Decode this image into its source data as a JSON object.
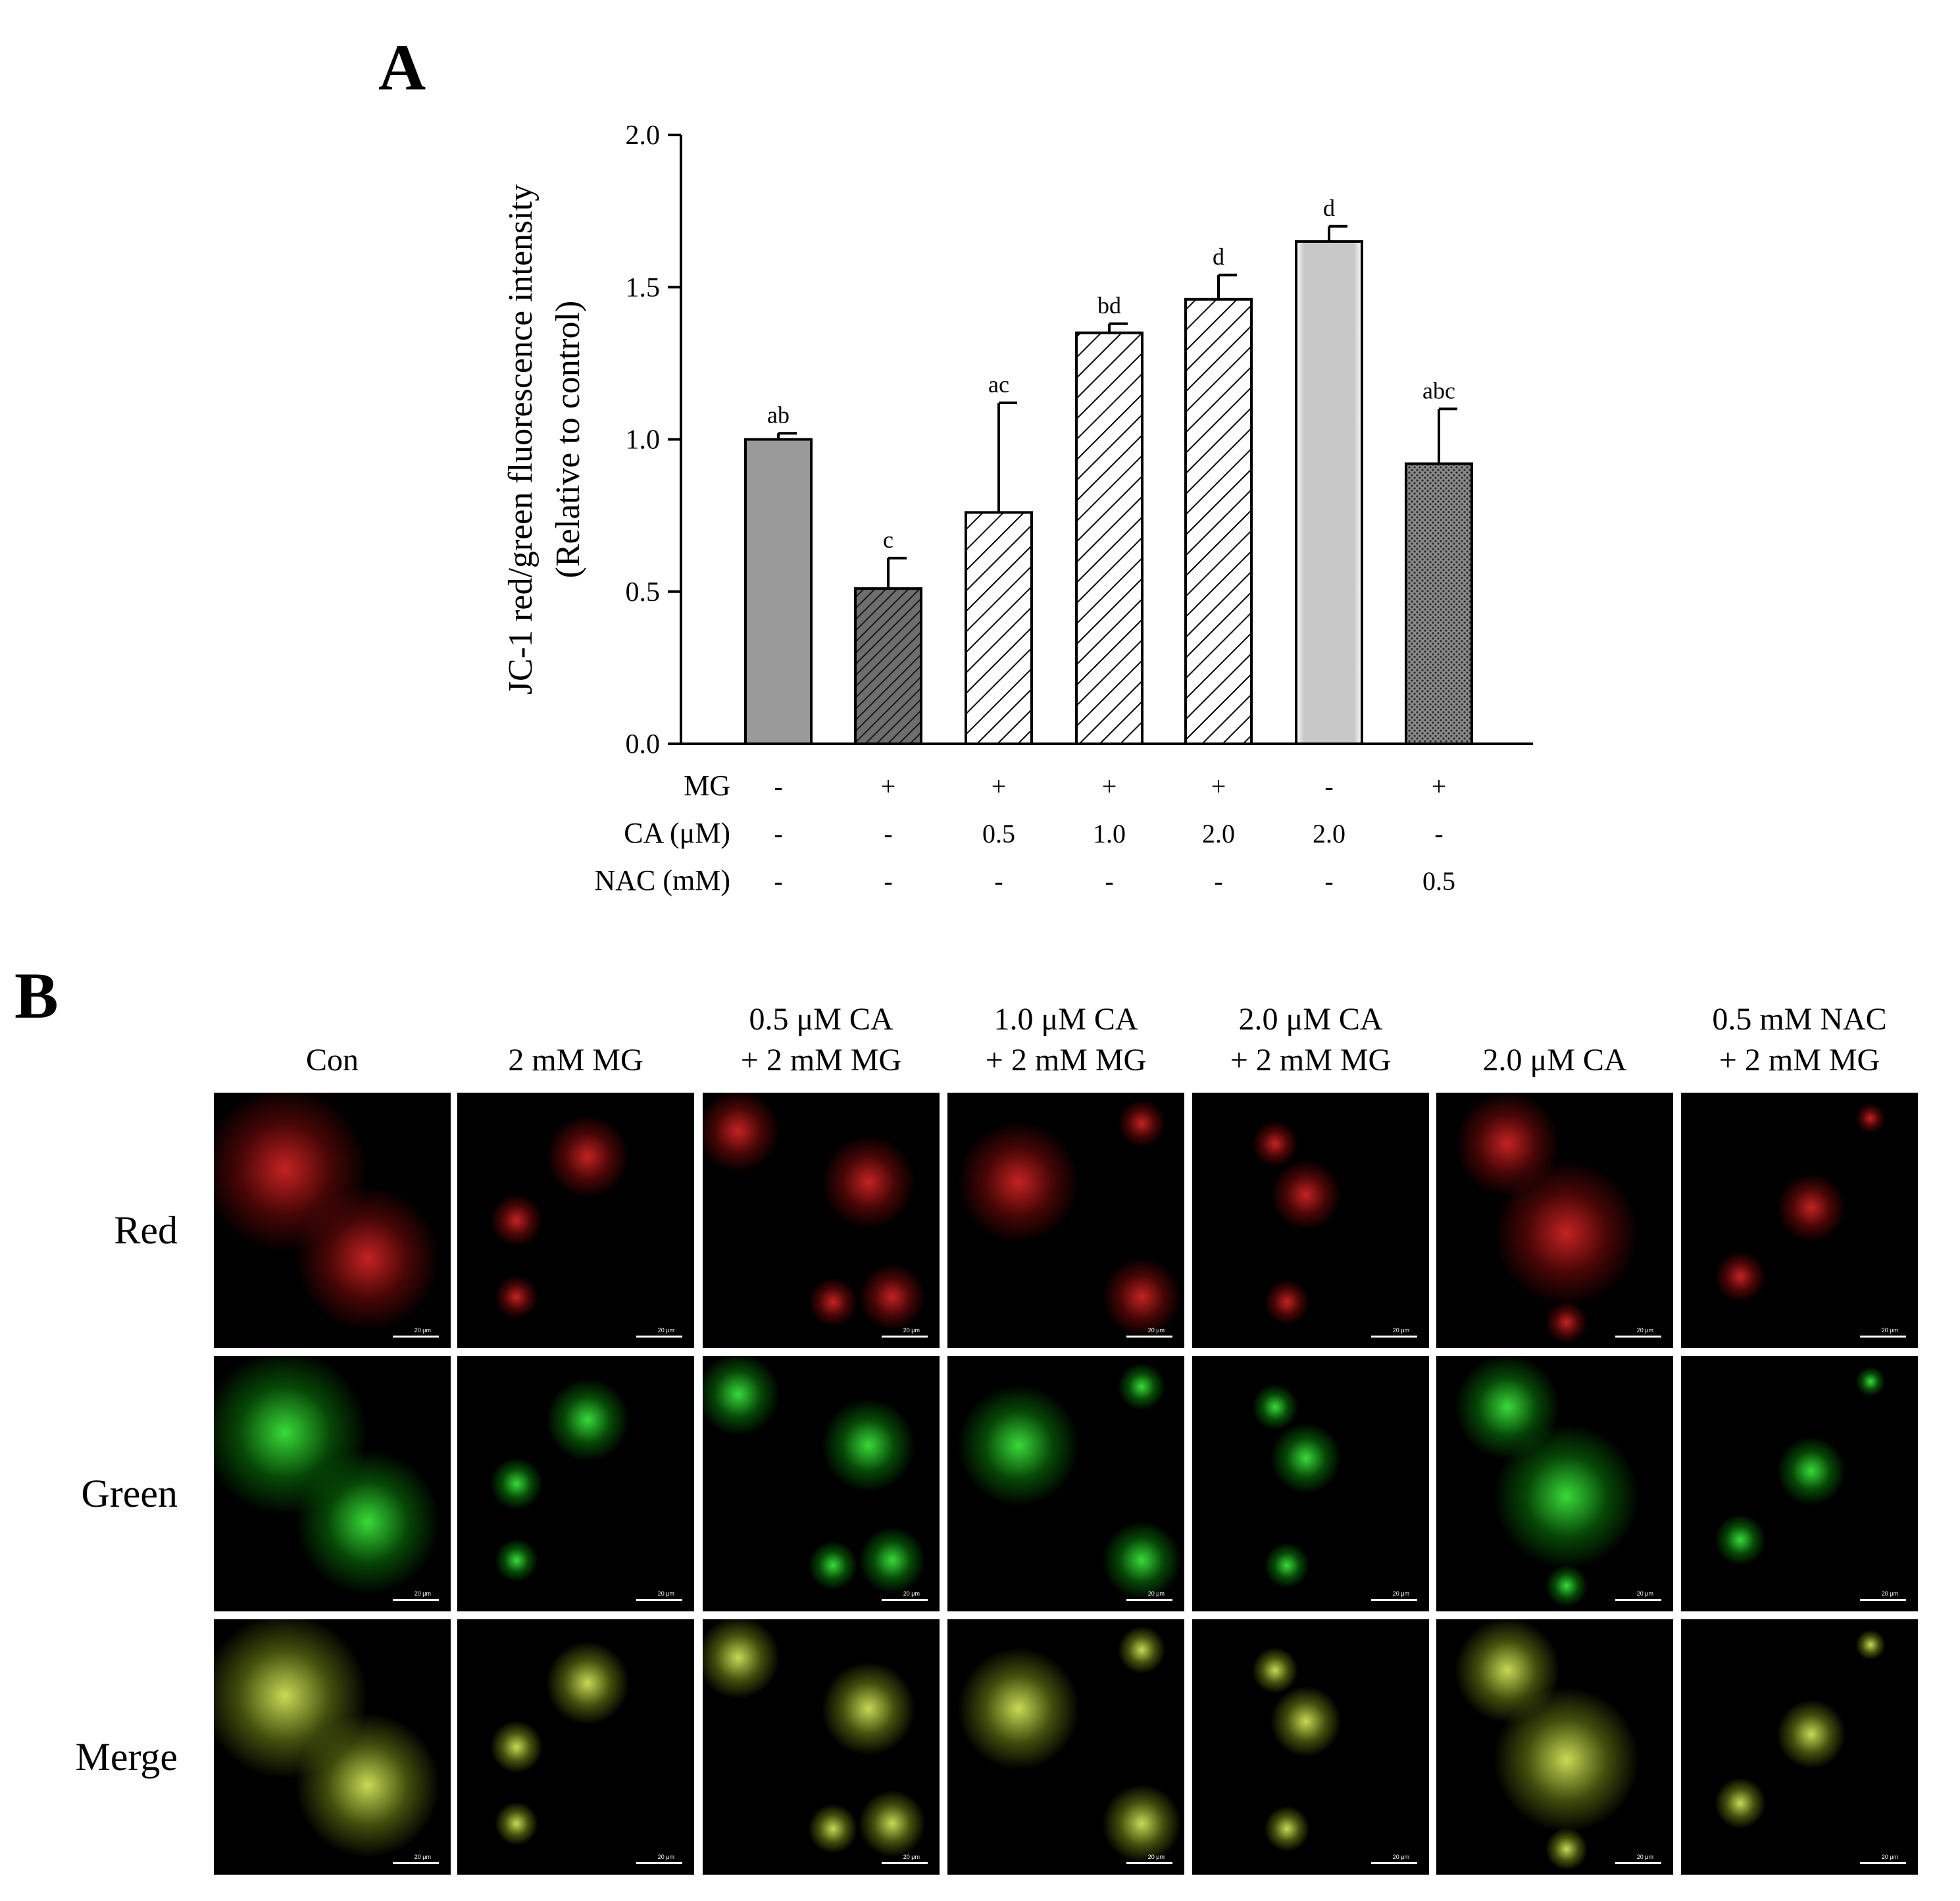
{
  "panel_a": {
    "letter": "A"
  },
  "panel_b": {
    "letter": "B"
  },
  "chart_data": {
    "type": "bar",
    "ylabel_line1": "JC-1 red/green fluorescence intensity",
    "ylabel_line2": "(Relative to control)",
    "ylim": [
      0,
      2.0
    ],
    "yticks": [
      "0.0",
      "0.5",
      "1.0",
      "1.5",
      "2.0"
    ],
    "values": [
      1.0,
      0.51,
      0.76,
      1.35,
      1.46,
      1.65,
      0.92
    ],
    "errors": [
      0.02,
      0.1,
      0.36,
      0.03,
      0.08,
      0.05,
      0.18
    ],
    "significance": [
      "ab",
      "c",
      "ac",
      "bd",
      "d",
      "d",
      "abc"
    ],
    "fills": [
      "solid-gray",
      "dense-hatch",
      "hatch",
      "hatch",
      "hatch",
      "light-gray",
      "crosshatch"
    ],
    "conditions": [
      {
        "label": "MG",
        "values": [
          "-",
          "+",
          "+",
          "+",
          "+",
          "-",
          "+"
        ]
      },
      {
        "label": "CA (μM)",
        "values": [
          "-",
          "-",
          "0.5",
          "1.0",
          "2.0",
          "2.0",
          "-"
        ]
      },
      {
        "label": "NAC (mM)",
        "values": [
          "-",
          "-",
          "-",
          "-",
          "-",
          "-",
          "0.5"
        ]
      }
    ]
  },
  "micrographs": {
    "columns": [
      {
        "line1": "",
        "line2": "Con"
      },
      {
        "line1": "",
        "line2": "2 mM MG"
      },
      {
        "line1": "0.5 μM CA",
        "line2": "+ 2 mM MG"
      },
      {
        "line1": "1.0 μM CA",
        "line2": "+ 2 mM MG"
      },
      {
        "line1": "2.0 μM CA",
        "line2": "+ 2 mM MG"
      },
      {
        "line1": "",
        "line2": "2.0 μM CA"
      },
      {
        "line1": "0.5 mM NAC",
        "line2": "+ 2 mM MG"
      }
    ],
    "rows": [
      "Red",
      "Green",
      "Merge"
    ],
    "scale_bar_text": "20 μm"
  }
}
